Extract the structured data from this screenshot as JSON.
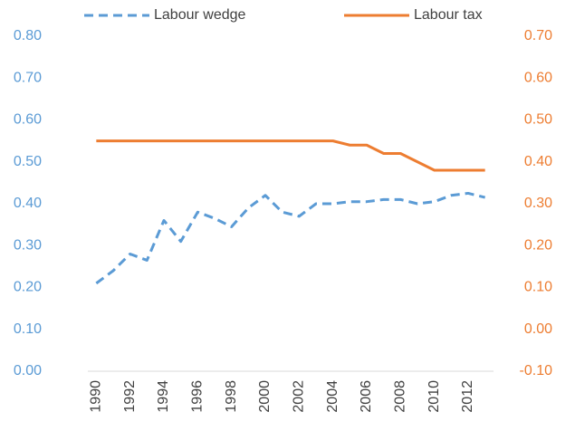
{
  "chart_data": {
    "type": "line",
    "categories": [
      "1990",
      null,
      "1992",
      null,
      "1994",
      null,
      "1996",
      null,
      "1998",
      null,
      "2000",
      null,
      "2002",
      null,
      "2004",
      null,
      "2006",
      null,
      "2008",
      null,
      "2010",
      null,
      "2012",
      null
    ],
    "series": [
      {
        "name": "Labour wedge",
        "color": "#5b9bd5",
        "dash": "dashed",
        "axis": "y",
        "values": [
          0.21,
          0.24,
          0.28,
          0.265,
          0.36,
          0.31,
          0.38,
          0.365,
          0.345,
          0.39,
          0.42,
          0.38,
          0.37,
          0.4,
          0.4,
          0.405,
          0.405,
          0.41,
          0.41,
          0.4,
          0.405,
          0.42,
          0.425,
          0.415
        ]
      },
      {
        "name": "Labour tax",
        "color": "#ed7d31",
        "dash": "solid",
        "axis": "y2",
        "values": [
          0.45,
          0.45,
          0.45,
          0.45,
          0.45,
          0.45,
          0.45,
          0.45,
          0.45,
          0.45,
          0.45,
          0.45,
          0.45,
          0.45,
          0.45,
          0.44,
          0.44,
          0.42,
          0.42,
          0.4,
          0.38,
          0.38,
          0.38,
          0.38
        ]
      }
    ],
    "ylim": [
      0,
      0.8
    ],
    "yticks": [
      {
        "value": 0,
        "label": "0.00"
      },
      {
        "value": 0.1,
        "label": "0.10"
      },
      {
        "value": 0.2,
        "label": "0.20"
      },
      {
        "value": 0.3,
        "label": "0.30"
      },
      {
        "value": 0.4,
        "label": "0.40"
      },
      {
        "value": 0.5,
        "label": "0.50"
      },
      {
        "value": 0.6,
        "label": "0.60"
      },
      {
        "value": 0.7,
        "label": "0.70"
      },
      {
        "value": 0.8,
        "label": "0.80"
      }
    ],
    "y2lim": [
      -0.1,
      0.7
    ],
    "y2ticks": [
      {
        "value": -0.1,
        "label": "-0.10"
      },
      {
        "value": 0,
        "label": "0.00"
      },
      {
        "value": 0.1,
        "label": "0.10"
      },
      {
        "value": 0.2,
        "label": "0.20"
      },
      {
        "value": 0.3,
        "label": "0.30"
      },
      {
        "value": 0.4,
        "label": "0.40"
      },
      {
        "value": 0.5,
        "label": "0.50"
      },
      {
        "value": 0.6,
        "label": "0.60"
      },
      {
        "value": 0.7,
        "label": "0.70"
      }
    ],
    "grid": false,
    "legend": "top"
  }
}
